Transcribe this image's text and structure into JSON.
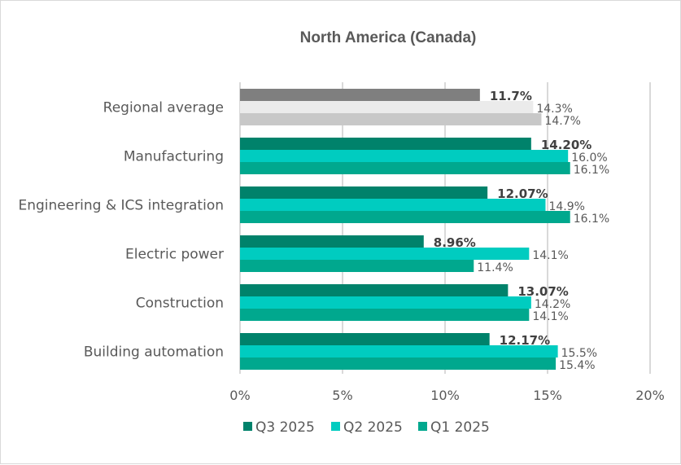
{
  "chart_data": {
    "type": "bar",
    "orientation": "horizontal",
    "title": "North America (Canada)",
    "xlabel": "",
    "ylabel": "",
    "xlim": [
      0,
      20
    ],
    "x_ticks": [
      "0%",
      "5%",
      "10%",
      "15%",
      "20%"
    ],
    "x_tick_values": [
      0,
      5,
      10,
      15,
      20
    ],
    "grid": true,
    "legend_position": "bottom",
    "categories": [
      "Regional average",
      "Manufacturing",
      "Engineering & ICS integration",
      "Electric power",
      "Construction",
      "Building automation"
    ],
    "series": [
      {
        "name": "Q3 2025",
        "color": "#00826B",
        "values": [
          11.7,
          14.2,
          12.07,
          8.96,
          13.07,
          12.17
        ],
        "labels": [
          "11.7%",
          "14.20%",
          "12.07%",
          "8.96%",
          "13.07%",
          "12.17%"
        ],
        "label_bold": true
      },
      {
        "name": "Q2 2025",
        "color": "#00CCC0",
        "values": [
          14.3,
          16.0,
          14.9,
          14.1,
          14.2,
          15.5
        ],
        "labels": [
          "14.3%",
          "16.0%",
          "14.9%",
          "14.1%",
          "14.2%",
          "15.5%"
        ],
        "label_bold": false
      },
      {
        "name": "Q1 2025",
        "color": "#00A88E",
        "values": [
          14.7,
          16.1,
          16.1,
          11.4,
          14.1,
          15.4
        ],
        "labels": [
          "14.7%",
          "16.1%",
          "16.1%",
          "11.4%",
          "14.1%",
          "15.4%"
        ],
        "label_bold": false
      }
    ],
    "regional_average_colors": [
      "#7F7F7F",
      "#EBEBEB",
      "#C8C8C8"
    ]
  }
}
